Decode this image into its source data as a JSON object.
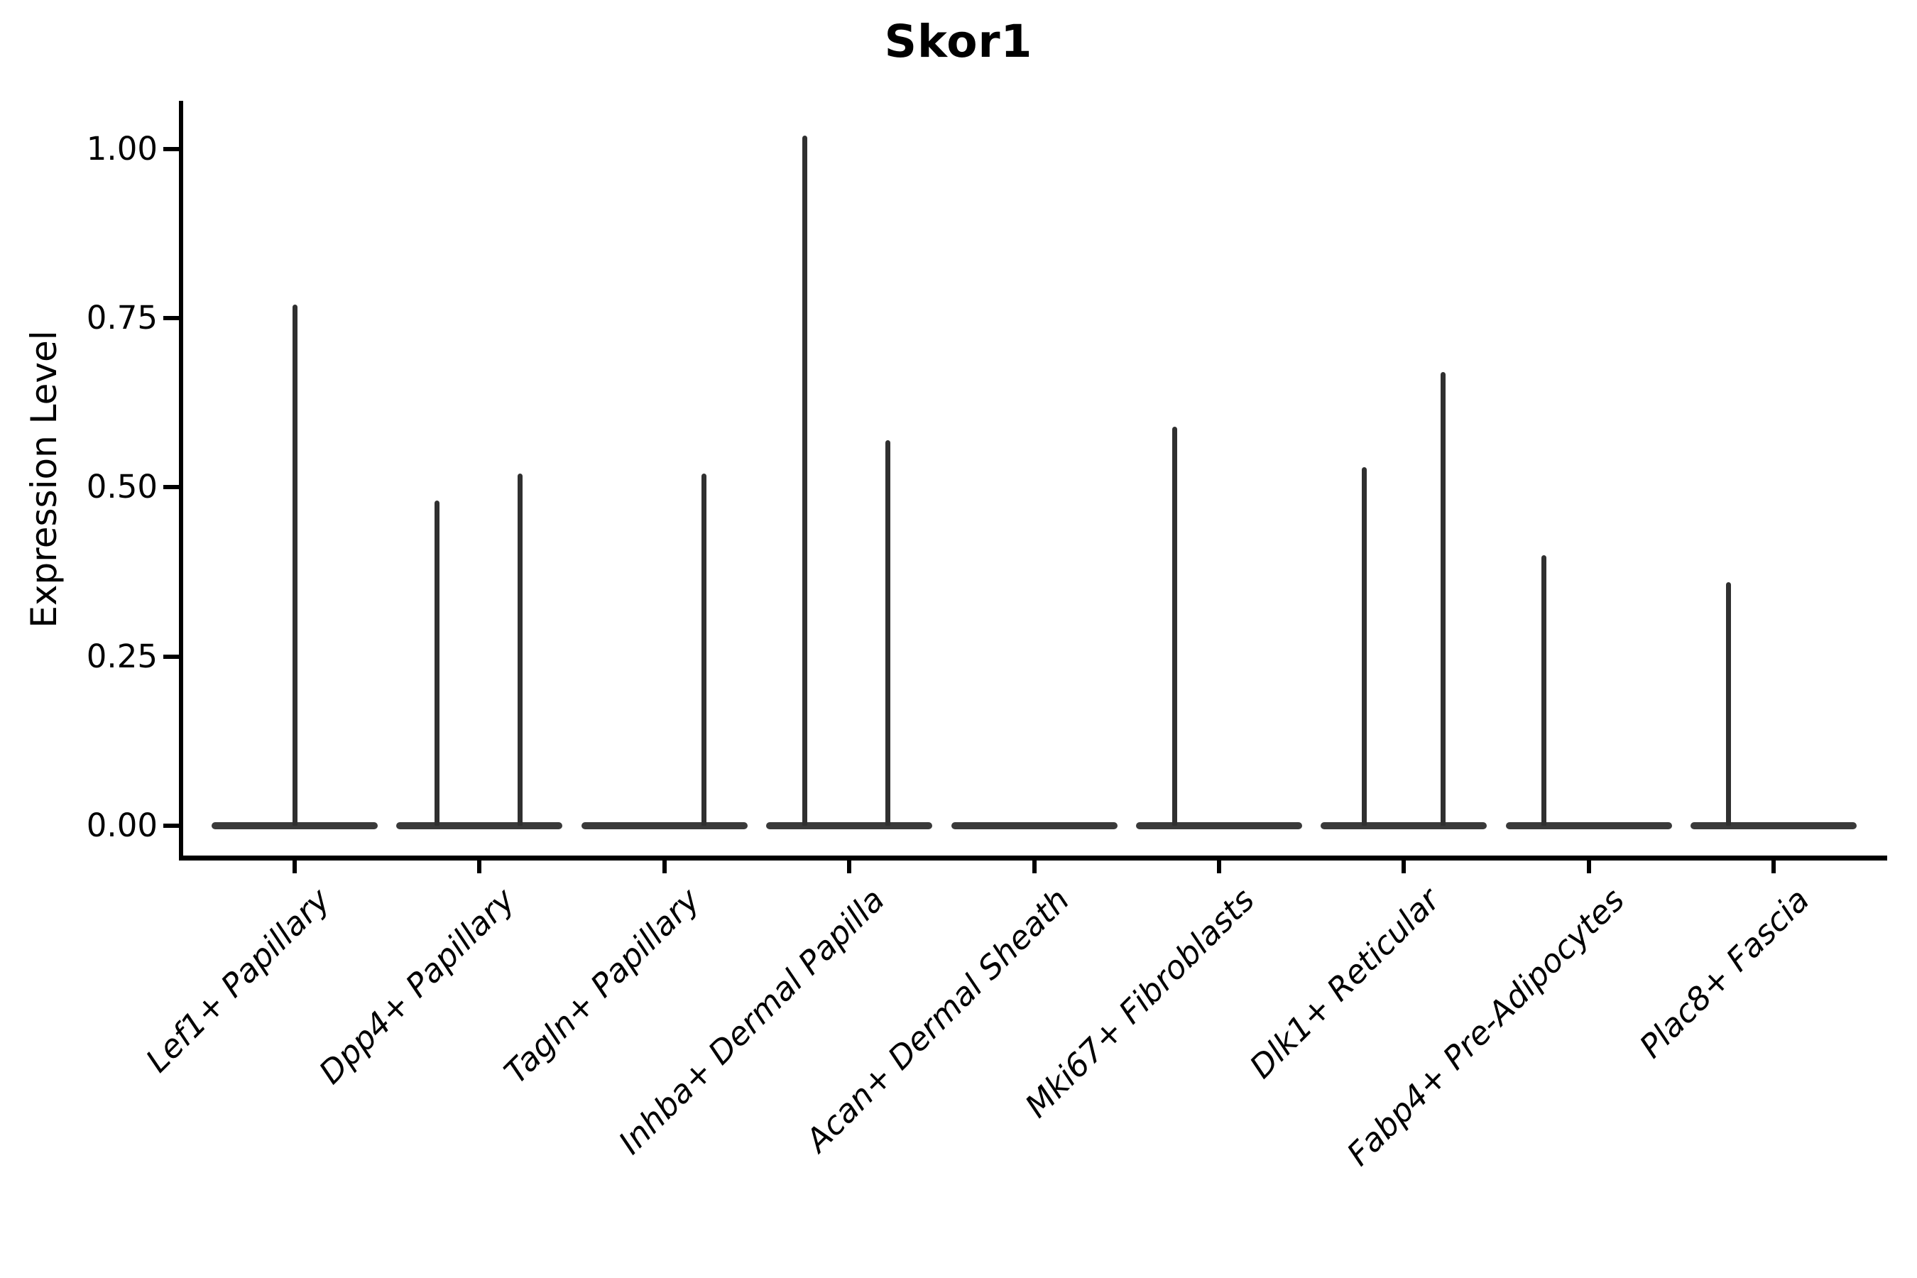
{
  "chart_data": {
    "type": "violin",
    "title": "Skor1",
    "xlabel": "",
    "ylabel": "Expression Level",
    "yticks": [
      0.0,
      0.25,
      0.5,
      0.75,
      1.0
    ],
    "ytick_labels": [
      "0.00",
      "0.25",
      "0.50",
      "0.75",
      "1.00"
    ],
    "ylim": [
      -0.05,
      1.07
    ],
    "grid": false,
    "legend": false,
    "categories": [
      "Lef1+ Papillary",
      "Dpp4+ Papillary",
      "Tagln+ Papillary",
      "Inhba+ Dermal Papilla",
      "Acan+ Dermal Sheath",
      "Mki67+ Fibroblasts",
      "Dlk1+ Reticular",
      "Fabp4+ Pre-Adipocytes",
      "Plac8+ Fascia"
    ],
    "violins": [
      {
        "category": "Lef1+ Papillary",
        "baseline_value": 0.0,
        "spikes": [
          {
            "pos": 0.0,
            "max": 0.77
          }
        ]
      },
      {
        "category": "Dpp4+ Papillary",
        "baseline_value": 0.0,
        "spikes": [
          {
            "pos": -0.23,
            "max": 0.48
          },
          {
            "pos": 0.22,
            "max": 0.52
          }
        ]
      },
      {
        "category": "Tagln+ Papillary",
        "baseline_value": 0.0,
        "spikes": [
          {
            "pos": 0.215,
            "max": 0.52
          }
        ]
      },
      {
        "category": "Inhba+ Dermal Papilla",
        "baseline_value": 0.0,
        "spikes": [
          {
            "pos": -0.24,
            "max": 1.02
          },
          {
            "pos": 0.21,
            "max": 0.57
          }
        ]
      },
      {
        "category": "Acan+ Dermal Sheath",
        "baseline_value": 0.0,
        "spikes": []
      },
      {
        "category": "Mki67+ Fibroblasts",
        "baseline_value": 0.0,
        "spikes": [
          {
            "pos": -0.24,
            "max": 0.59
          }
        ]
      },
      {
        "category": "Dlk1+ Reticular",
        "baseline_value": 0.0,
        "spikes": [
          {
            "pos": -0.215,
            "max": 0.53
          },
          {
            "pos": 0.21,
            "max": 0.67
          }
        ]
      },
      {
        "category": "Fabp4+ Pre-Adipocytes",
        "baseline_value": 0.0,
        "spikes": [
          {
            "pos": -0.245,
            "max": 0.4
          }
        ]
      },
      {
        "category": "Plac8+ Fascia",
        "baseline_value": 0.0,
        "spikes": [
          {
            "pos": -0.246,
            "max": 0.36
          }
        ]
      }
    ],
    "colors": {
      "violin_fill": "#3a3a3a",
      "spike_fill": "#303030",
      "axis": "#000000",
      "background": "#ffffff"
    }
  }
}
